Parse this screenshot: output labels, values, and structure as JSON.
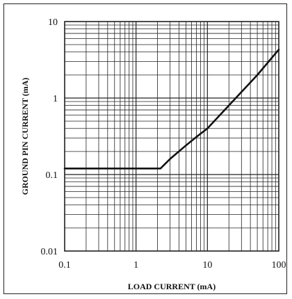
{
  "chart_data": {
    "type": "line",
    "title": "",
    "xlabel": "LOAD CURRENT (mA)",
    "ylabel": "GROUND PIN CURRENT (mA)",
    "x_scale": "log",
    "y_scale": "log",
    "xlim": [
      0.1,
      100
    ],
    "ylim": [
      0.01,
      10
    ],
    "x_ticks": [
      "0.1",
      "1",
      "10",
      "100"
    ],
    "y_ticks": [
      "0.01",
      "0.1",
      "1",
      "10"
    ],
    "grid": true,
    "legend": "none",
    "series": [
      {
        "x": [
          0.1,
          0.5,
          1,
          2.2,
          3,
          5,
          7,
          10,
          15,
          20,
          30,
          50,
          70,
          100
        ],
        "y": [
          0.12,
          0.12,
          0.12,
          0.12,
          0.16,
          0.24,
          0.31,
          0.4,
          0.6,
          0.8,
          1.2,
          2.0,
          2.9,
          4.3
        ]
      }
    ],
    "colors": {
      "line": "#111111",
      "grid": "#222222"
    }
  }
}
